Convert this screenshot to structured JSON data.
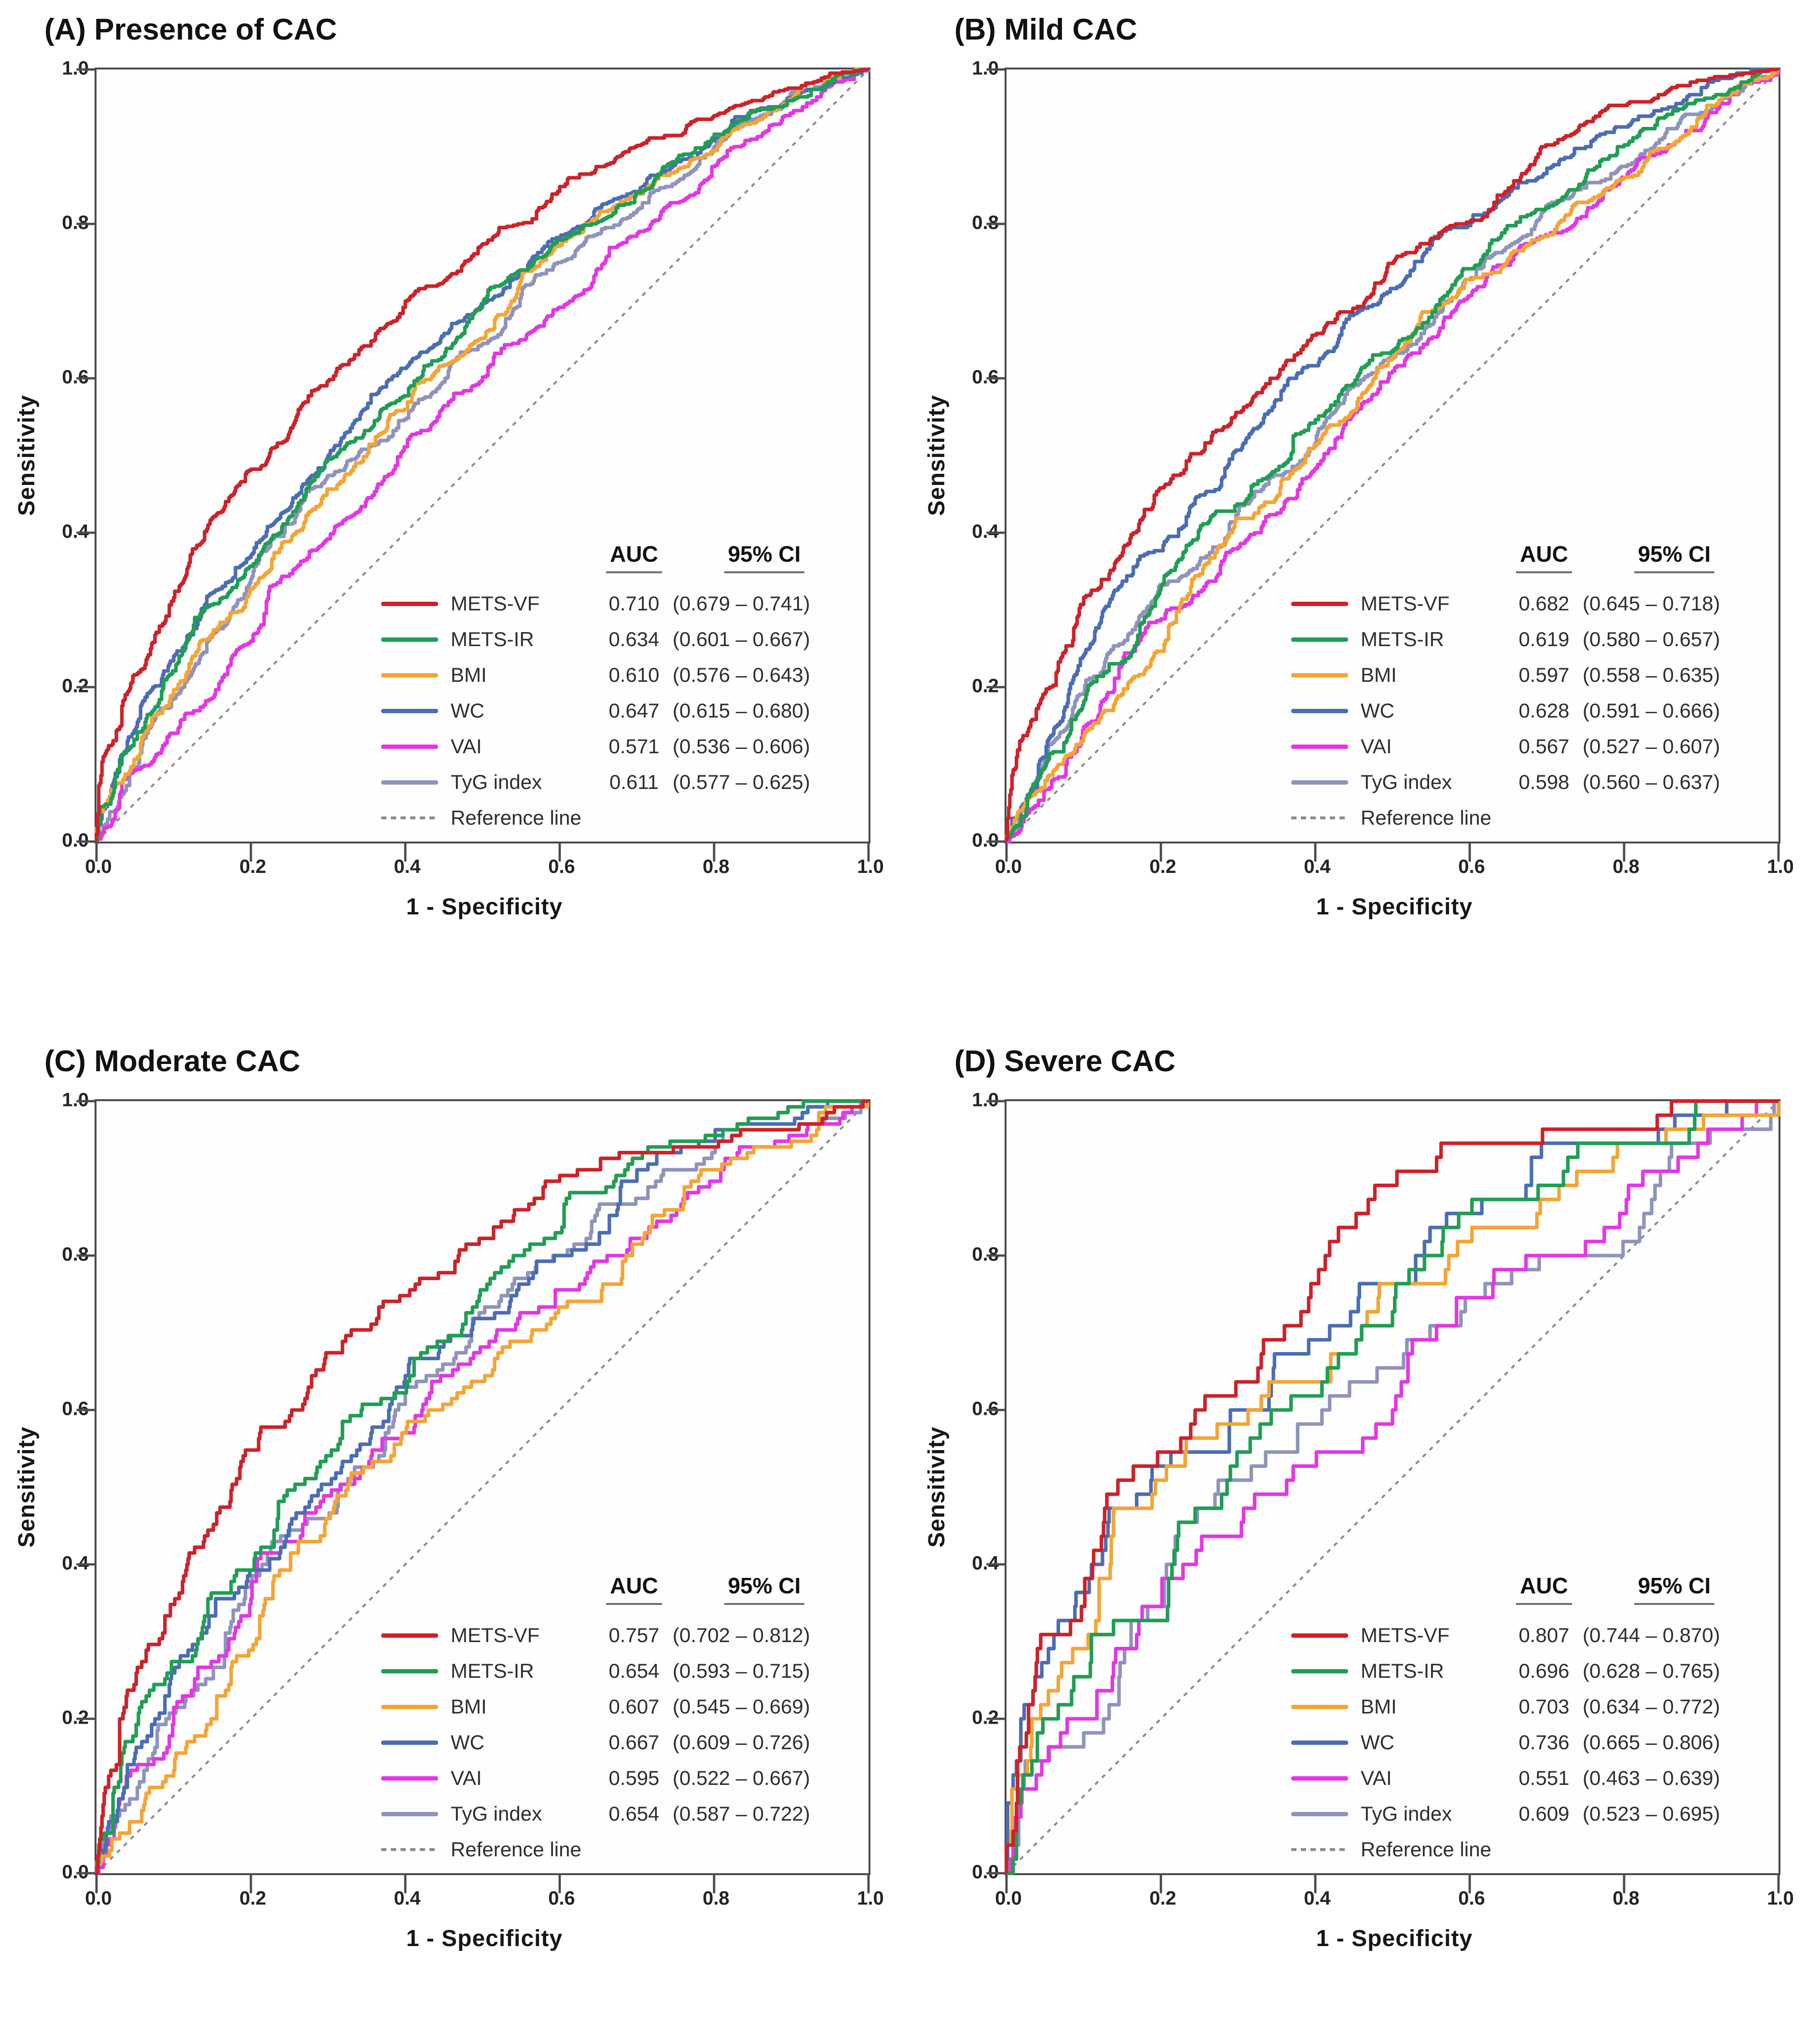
{
  "style": {
    "background": "#ffffff",
    "axis_color": "#4b4b4b",
    "tick_text_color": "#242424",
    "reference_color": "#8c8c8c",
    "colors": {
      "METS-VF": "#cf2128",
      "METS-IR": "#1f9e54",
      "BMI": "#f5a434",
      "WC": "#4a6db4",
      "VAI": "#e535e5",
      "TyG index": "#8f93bd",
      "Reference line": "#8c8c8c"
    }
  },
  "chart_data": [
    {
      "id": "A",
      "type": "line",
      "subtype": "roc-curve",
      "title": "(A) Presence of CAC",
      "xlabel": "1 - Specificity",
      "ylabel": "Sensitivity",
      "xlim": [
        0,
        1
      ],
      "ylim": [
        0,
        1
      ],
      "xticks": [
        "0.0",
        "0.2",
        "0.4",
        "0.6",
        "0.8",
        "1.0"
      ],
      "yticks": [
        "0.0",
        "0.2",
        "0.4",
        "0.6",
        "0.8",
        "1.0"
      ],
      "grid": false,
      "legend_position": "lower right",
      "legend_headers": [
        "AUC",
        "95% CI"
      ],
      "series": [
        {
          "name": "METS-VF",
          "auc": 0.71,
          "auc_label": "0.710",
          "ci": "(0.679 – 0.741)"
        },
        {
          "name": "METS-IR",
          "auc": 0.634,
          "auc_label": "0.634",
          "ci": "(0.601 – 0.667)"
        },
        {
          "name": "BMI",
          "auc": 0.61,
          "auc_label": "0.610",
          "ci": "(0.576 – 0.643)"
        },
        {
          "name": "WC",
          "auc": 0.647,
          "auc_label": "0.647",
          "ci": "(0.615 – 0.680)"
        },
        {
          "name": "VAI",
          "auc": 0.571,
          "auc_label": "0.571",
          "ci": "(0.536 – 0.606)"
        },
        {
          "name": "TyG index",
          "auc": 0.611,
          "auc_label": "0.611",
          "ci": "(0.577 – 0.625)"
        },
        {
          "name": "Reference line",
          "auc_label": "",
          "ci": ""
        }
      ]
    },
    {
      "id": "B",
      "type": "line",
      "subtype": "roc-curve",
      "title": "(B) Mild CAC",
      "xlabel": "1 - Specificity",
      "ylabel": "Sensitivity",
      "xlim": [
        0,
        1
      ],
      "ylim": [
        0,
        1
      ],
      "xticks": [
        "0.0",
        "0.2",
        "0.4",
        "0.6",
        "0.8",
        "1.0"
      ],
      "yticks": [
        "0.0",
        "0.2",
        "0.4",
        "0.6",
        "0.8",
        "1.0"
      ],
      "grid": false,
      "legend_position": "lower right",
      "legend_headers": [
        "AUC",
        "95% CI"
      ],
      "series": [
        {
          "name": "METS-VF",
          "auc": 0.682,
          "auc_label": "0.682",
          "ci": "(0.645 – 0.718)"
        },
        {
          "name": "METS-IR",
          "auc": 0.619,
          "auc_label": "0.619",
          "ci": "(0.580 – 0.657)"
        },
        {
          "name": "BMI",
          "auc": 0.597,
          "auc_label": "0.597",
          "ci": "(0.558 – 0.635)"
        },
        {
          "name": "WC",
          "auc": 0.628,
          "auc_label": "0.628",
          "ci": "(0.591 – 0.666)"
        },
        {
          "name": "VAI",
          "auc": 0.567,
          "auc_label": "0.567",
          "ci": "(0.527 – 0.607)"
        },
        {
          "name": "TyG index",
          "auc": 0.598,
          "auc_label": "0.598",
          "ci": "(0.560 – 0.637)"
        },
        {
          "name": "Reference line",
          "auc_label": "",
          "ci": ""
        }
      ]
    },
    {
      "id": "C",
      "type": "line",
      "subtype": "roc-curve",
      "title": "(C) Moderate CAC",
      "xlabel": "1 - Specificity",
      "ylabel": "Sensitivity",
      "xlim": [
        0,
        1
      ],
      "ylim": [
        0,
        1
      ],
      "xticks": [
        "0.0",
        "0.2",
        "0.4",
        "0.6",
        "0.8",
        "1.0"
      ],
      "yticks": [
        "0.0",
        "0.2",
        "0.4",
        "0.6",
        "0.8",
        "1.0"
      ],
      "grid": false,
      "legend_position": "lower right",
      "legend_headers": [
        "AUC",
        "95% CI"
      ],
      "series": [
        {
          "name": "METS-VF",
          "auc": 0.757,
          "auc_label": "0.757",
          "ci": "(0.702 – 0.812)"
        },
        {
          "name": "METS-IR",
          "auc": 0.654,
          "auc_label": "0.654",
          "ci": "(0.593 – 0.715)"
        },
        {
          "name": "BMI",
          "auc": 0.607,
          "auc_label": "0.607",
          "ci": "(0.545 – 0.669)"
        },
        {
          "name": "WC",
          "auc": 0.667,
          "auc_label": "0.667",
          "ci": "(0.609 – 0.726)"
        },
        {
          "name": "VAI",
          "auc": 0.595,
          "auc_label": "0.595",
          "ci": "(0.522 – 0.667)"
        },
        {
          "name": "TyG index",
          "auc": 0.654,
          "auc_label": "0.654",
          "ci": "(0.587 – 0.722)"
        },
        {
          "name": "Reference line",
          "auc_label": "",
          "ci": ""
        }
      ]
    },
    {
      "id": "D",
      "type": "line",
      "subtype": "roc-curve",
      "title": "(D) Severe CAC",
      "xlabel": "1 - Specificity",
      "ylabel": "Sensitivity",
      "xlim": [
        0,
        1
      ],
      "ylim": [
        0,
        1
      ],
      "xticks": [
        "0.0",
        "0.2",
        "0.4",
        "0.6",
        "0.8",
        "1.0"
      ],
      "yticks": [
        "0.0",
        "0.2",
        "0.4",
        "0.6",
        "0.8",
        "1.0"
      ],
      "grid": false,
      "legend_position": "lower right",
      "legend_headers": [
        "AUC",
        "95% CI"
      ],
      "series": [
        {
          "name": "METS-VF",
          "auc": 0.807,
          "auc_label": "0.807",
          "ci": "(0.744 – 0.870)"
        },
        {
          "name": "METS-IR",
          "auc": 0.696,
          "auc_label": "0.696",
          "ci": "(0.628 – 0.765)"
        },
        {
          "name": "BMI",
          "auc": 0.703,
          "auc_label": "0.703",
          "ci": "(0.634 – 0.772)"
        },
        {
          "name": "WC",
          "auc": 0.736,
          "auc_label": "0.736",
          "ci": "(0.665 – 0.806)"
        },
        {
          "name": "VAI",
          "auc": 0.551,
          "auc_label": "0.551",
          "ci": "(0.463 – 0.639)"
        },
        {
          "name": "TyG index",
          "auc": 0.609,
          "auc_label": "0.609",
          "ci": "(0.523 – 0.695)"
        },
        {
          "name": "Reference line",
          "auc_label": "",
          "ci": ""
        }
      ]
    }
  ]
}
